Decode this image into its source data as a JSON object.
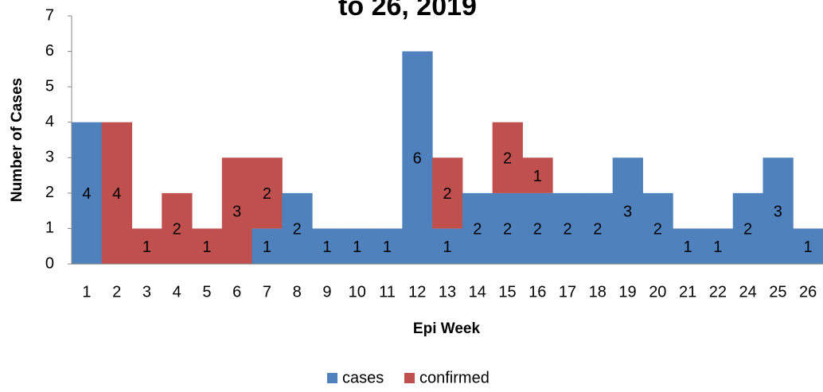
{
  "chart_data": {
    "type": "bar",
    "stacked": true,
    "title": "to 26, 2019",
    "x_label": "Epi Week",
    "y_label": "Number of Cases",
    "categories": [
      "1",
      "2",
      "3",
      "4",
      "5",
      "6",
      "7",
      "8",
      "9",
      "10",
      "11",
      "12",
      "13",
      "14",
      "15",
      "16",
      "17",
      "18",
      "19",
      "20",
      "21",
      "22",
      "24",
      "25",
      "26"
    ],
    "series": [
      {
        "name": "cases",
        "color": "#4f81bd",
        "values": [
          4,
          0,
          0,
          0,
          0,
          0,
          1,
          2,
          1,
          1,
          1,
          6,
          1,
          2,
          2,
          2,
          2,
          2,
          3,
          2,
          1,
          1,
          2,
          3,
          1
        ]
      },
      {
        "name": "confirmed",
        "color": "#c0504d",
        "values": [
          0,
          4,
          1,
          2,
          1,
          3,
          2,
          0,
          0,
          0,
          0,
          0,
          2,
          0,
          2,
          1,
          0,
          0,
          0,
          0,
          0,
          0,
          0,
          0,
          0
        ]
      }
    ],
    "ylim": [
      0,
      7
    ],
    "yticks": [
      0,
      1,
      2,
      3,
      4,
      5,
      6,
      7
    ],
    "legend": "bottom"
  }
}
